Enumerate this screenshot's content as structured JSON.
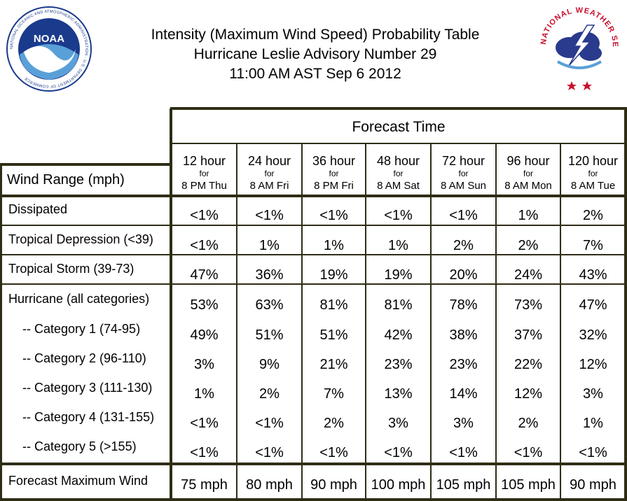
{
  "title": {
    "line1": "Intensity (Maximum Wind Speed) Probability Table",
    "line2": "Hurricane Leslie Advisory Number 29",
    "line3": "11:00 AM AST Sep 6 2012"
  },
  "logos": {
    "noaa": {
      "text": "NOAA",
      "ring_text": "NATIONAL OCEANIC AND ATMOSPHERIC ADMINISTRATION · U.S. DEPARTMENT OF COMMERCE"
    },
    "nws": {
      "ring_text": "NATIONAL WEATHER SERVICE"
    }
  },
  "colors": {
    "border": "#2f2d15",
    "noaa_blue": "#1a3a8c",
    "nws_red": "#c8102e"
  },
  "table": {
    "forecast_time_label": "Forecast Time",
    "wind_range_label": "Wind Range (mph)",
    "for_label": "for",
    "columns": [
      {
        "hour": "12 hour",
        "when": "8 PM Thu"
      },
      {
        "hour": "24 hour",
        "when": "8 AM Fri"
      },
      {
        "hour": "36 hour",
        "when": "8 PM Fri"
      },
      {
        "hour": "48 hour",
        "when": "8 AM Sat"
      },
      {
        "hour": "72 hour",
        "when": "8 AM Sun"
      },
      {
        "hour": "96 hour",
        "when": "8 AM Mon"
      },
      {
        "hour": "120 hour",
        "when": "8 AM Tue"
      }
    ],
    "rows": [
      {
        "label": "Dissipated",
        "values": [
          "<1%",
          "<1%",
          "<1%",
          "<1%",
          "<1%",
          "1%",
          "2%"
        ]
      },
      {
        "label": "Tropical Depression (<39)",
        "values": [
          "<1%",
          "1%",
          "1%",
          "1%",
          "2%",
          "2%",
          "7%"
        ]
      },
      {
        "label": "Tropical Storm (39-73)",
        "values": [
          "47%",
          "36%",
          "19%",
          "19%",
          "20%",
          "24%",
          "43%"
        ]
      },
      {
        "label": "Hurricane (all categories)",
        "values": [
          "53%",
          "63%",
          "81%",
          "81%",
          "78%",
          "73%",
          "47%"
        ]
      },
      {
        "label": "-- Category 1 (74-95)",
        "values": [
          "49%",
          "51%",
          "51%",
          "42%",
          "38%",
          "37%",
          "32%"
        ]
      },
      {
        "label": "-- Category 2 (96-110)",
        "values": [
          "3%",
          "9%",
          "21%",
          "23%",
          "23%",
          "22%",
          "12%"
        ]
      },
      {
        "label": "-- Category 3 (111-130)",
        "values": [
          "1%",
          "2%",
          "7%",
          "13%",
          "14%",
          "12%",
          "3%"
        ]
      },
      {
        "label": "-- Category 4 (131-155)",
        "values": [
          "<1%",
          "<1%",
          "2%",
          "3%",
          "3%",
          "2%",
          "1%"
        ]
      },
      {
        "label": "-- Category 5 (>155)",
        "values": [
          "<1%",
          "<1%",
          "<1%",
          "<1%",
          "<1%",
          "<1%",
          "<1%"
        ]
      }
    ],
    "forecast_max": {
      "label": "Forecast Maximum Wind",
      "values": [
        "75 mph",
        "80 mph",
        "90 mph",
        "100 mph",
        "105 mph",
        "105 mph",
        "90 mph"
      ]
    }
  }
}
